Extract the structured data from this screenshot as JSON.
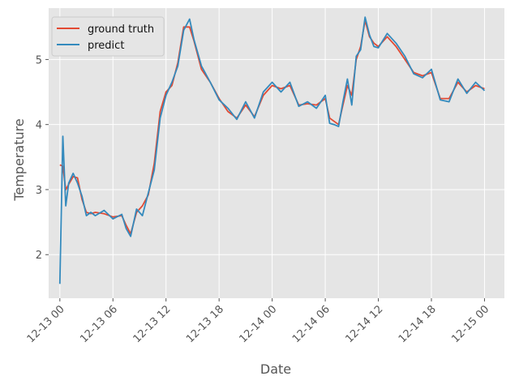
{
  "chart_data": {
    "type": "line",
    "title": "",
    "xlabel": "Date",
    "ylabel": "Temperature",
    "xlim": [
      "2023-12-12 22:44",
      "2023-12-15 02:15"
    ],
    "ylim": [
      1.33,
      5.79
    ],
    "x_ticks": [
      "2023-12-13 00:00",
      "2023-12-13 06:00",
      "2023-12-13 12:00",
      "2023-12-13 18:00",
      "2023-12-14 00:00",
      "2023-12-14 06:00",
      "2023-12-14 12:00",
      "2023-12-14 18:00",
      "2023-12-15 00:00"
    ],
    "x_tick_labels": [
      "12-13 00",
      "12-13 06",
      "12-13 12",
      "12-13 18",
      "12-14 00",
      "12-14 06",
      "12-14 12",
      "12-14 18",
      "12-15 00"
    ],
    "y_ticks": [
      2,
      3,
      4,
      5
    ],
    "y_tick_labels": [
      "2",
      "3",
      "4",
      "5"
    ],
    "grid": true,
    "legend": "top-left",
    "x": [
      "2023-12-13 00:00",
      "2023-12-13 00:20",
      "2023-12-13 00:40",
      "2023-12-13 01:00",
      "2023-12-13 01:30",
      "2023-12-13 02:00",
      "2023-12-13 02:30",
      "2023-12-13 03:00",
      "2023-12-13 03:30",
      "2023-12-13 04:00",
      "2023-12-13 05:00",
      "2023-12-13 06:00",
      "2023-12-13 07:00",
      "2023-12-13 07:30",
      "2023-12-13 08:00",
      "2023-12-13 08:40",
      "2023-12-13 09:20",
      "2023-12-13 10:00",
      "2023-12-13 10:40",
      "2023-12-13 11:20",
      "2023-12-13 12:00",
      "2023-12-13 12:40",
      "2023-12-13 13:20",
      "2023-12-13 14:00",
      "2023-12-13 14:40",
      "2023-12-13 15:10",
      "2023-12-13 16:00",
      "2023-12-13 17:00",
      "2023-12-13 18:00",
      "2023-12-13 19:00",
      "2023-12-13 20:00",
      "2023-12-13 21:00",
      "2023-12-13 22:00",
      "2023-12-13 23:00",
      "2023-12-14 00:00",
      "2023-12-14 01:00",
      "2023-12-14 02:00",
      "2023-12-14 03:00",
      "2023-12-14 04:00",
      "2023-12-14 05:00",
      "2023-12-14 06:00",
      "2023-12-14 06:30",
      "2023-12-14 07:00",
      "2023-12-14 07:30",
      "2023-12-14 08:00",
      "2023-12-14 08:30",
      "2023-12-14 09:00",
      "2023-12-14 09:30",
      "2023-12-14 10:00",
      "2023-12-14 10:30",
      "2023-12-14 11:00",
      "2023-12-14 11:30",
      "2023-12-14 12:00",
      "2023-12-14 13:00",
      "2023-12-14 14:00",
      "2023-12-14 15:00",
      "2023-12-14 16:00",
      "2023-12-14 17:00",
      "2023-12-14 18:00",
      "2023-12-14 19:00",
      "2023-12-14 20:00",
      "2023-12-14 21:00",
      "2023-12-14 22:00",
      "2023-12-14 23:00",
      "2023-12-15 00:00"
    ],
    "series": [
      {
        "name": "ground truth",
        "color": "#E24A33",
        "values": [
          3.38,
          3.36,
          3.0,
          3.08,
          3.2,
          3.18,
          2.85,
          2.65,
          2.63,
          2.65,
          2.63,
          2.58,
          2.6,
          2.45,
          2.32,
          2.65,
          2.75,
          2.92,
          3.4,
          4.2,
          4.5,
          4.6,
          4.95,
          5.5,
          5.5,
          5.28,
          4.85,
          4.65,
          4.4,
          4.2,
          4.1,
          4.3,
          4.12,
          4.45,
          4.6,
          4.55,
          4.6,
          4.3,
          4.32,
          4.3,
          4.4,
          4.1,
          4.05,
          4.0,
          4.3,
          4.6,
          4.45,
          5.0,
          5.2,
          5.6,
          5.35,
          5.25,
          5.2,
          5.35,
          5.2,
          5.0,
          4.8,
          4.75,
          4.8,
          4.4,
          4.4,
          4.65,
          4.5,
          4.6,
          4.55
        ]
      },
      {
        "name": "predict",
        "color": "#348ABD",
        "values": [
          1.55,
          3.82,
          2.75,
          3.1,
          3.25,
          3.1,
          2.9,
          2.6,
          2.65,
          2.6,
          2.68,
          2.55,
          2.62,
          2.4,
          2.28,
          2.7,
          2.6,
          2.95,
          3.3,
          4.1,
          4.45,
          4.65,
          4.9,
          5.45,
          5.62,
          5.3,
          4.9,
          4.65,
          4.38,
          4.25,
          4.08,
          4.35,
          4.1,
          4.5,
          4.65,
          4.5,
          4.65,
          4.28,
          4.35,
          4.25,
          4.45,
          4.02,
          4.0,
          3.97,
          4.35,
          4.7,
          4.3,
          5.05,
          5.15,
          5.65,
          5.38,
          5.2,
          5.18,
          5.4,
          5.25,
          5.05,
          4.78,
          4.72,
          4.85,
          4.38,
          4.35,
          4.7,
          4.48,
          4.65,
          4.52
        ]
      }
    ]
  }
}
